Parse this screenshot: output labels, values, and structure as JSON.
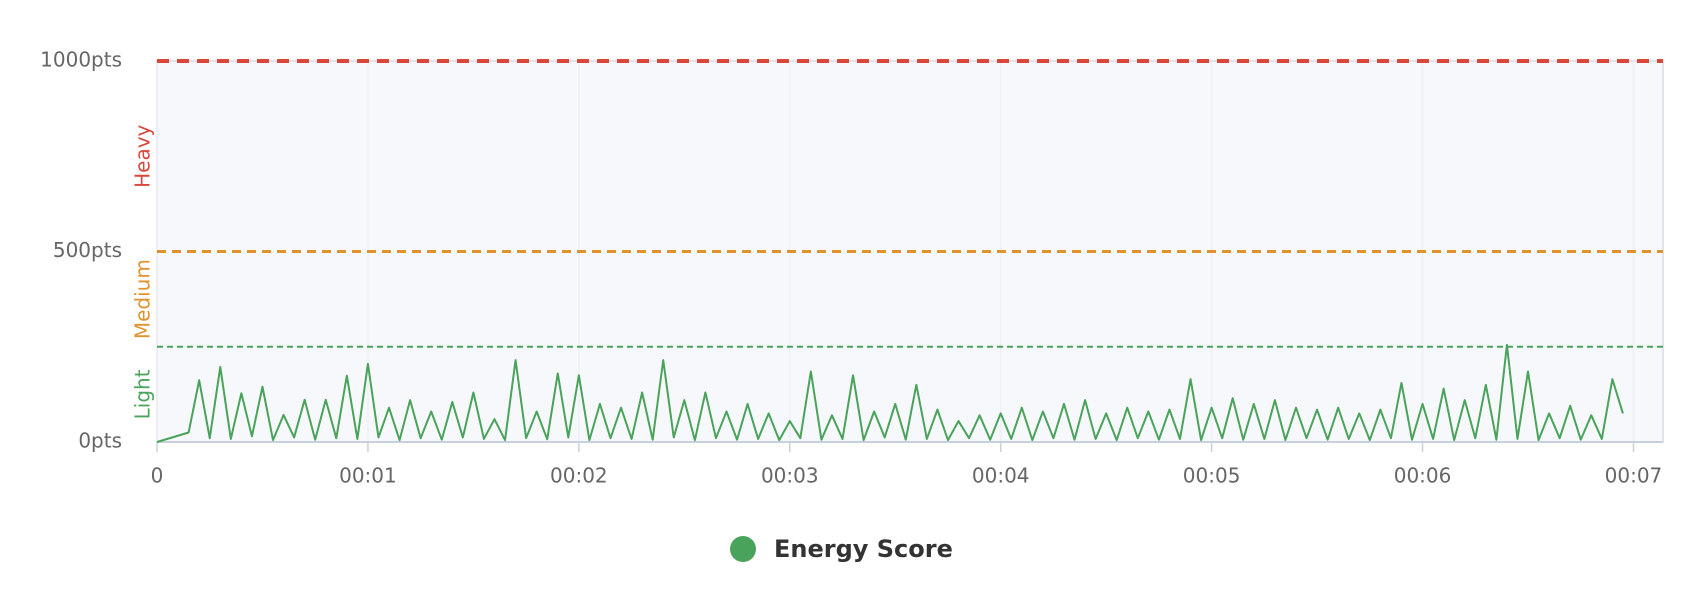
{
  "chart_data": {
    "type": "line",
    "x": [
      0,
      0.15,
      0.2,
      0.25,
      0.3,
      0.35,
      0.4,
      0.45,
      0.5,
      0.55,
      0.6,
      0.65,
      0.7,
      0.75,
      0.8,
      0.85,
      0.9,
      0.95,
      1,
      1.05,
      1.1,
      1.15,
      1.2,
      1.25,
      1.3,
      1.35,
      1.4,
      1.45,
      1.5,
      1.55,
      1.6,
      1.65,
      1.7,
      1.75,
      1.8,
      1.85,
      1.9,
      1.95,
      2,
      2.05,
      2.1,
      2.15,
      2.2,
      2.25,
      2.3,
      2.35,
      2.4,
      2.45,
      2.5,
      2.55,
      2.6,
      2.65,
      2.7,
      2.75,
      2.8,
      2.85,
      2.9,
      2.95,
      3,
      3.05,
      3.1,
      3.15,
      3.2,
      3.25,
      3.3,
      3.35,
      3.4,
      3.45,
      3.5,
      3.55,
      3.6,
      3.65,
      3.7,
      3.75,
      3.8,
      3.85,
      3.9,
      3.95,
      4,
      4.05,
      4.1,
      4.15,
      4.2,
      4.25,
      4.3,
      4.35,
      4.4,
      4.45,
      4.5,
      4.55,
      4.6,
      4.65,
      4.7,
      4.75,
      4.8,
      4.85,
      4.9,
      4.95,
      5,
      5.05,
      5.1,
      5.15,
      5.2,
      5.25,
      5.3,
      5.35,
      5.4,
      5.45,
      5.5,
      5.55,
      5.6,
      5.65,
      5.7,
      5.75,
      5.8,
      5.85,
      5.9,
      5.95,
      6,
      6.05,
      6.1,
      6.15,
      6.2,
      6.25,
      6.3,
      6.35,
      6.4,
      6.45,
      6.5,
      6.55,
      6.6,
      6.65,
      6.7,
      6.75,
      6.8,
      6.85,
      6.9,
      6.95
    ],
    "series": [
      {
        "name": "Energy Score",
        "color": "#4aa35a",
        "values": [
          0,
          25,
          162,
          10,
          197,
          8,
          128,
          15,
          145,
          5,
          71,
          12,
          111,
          6,
          111,
          10,
          174,
          8,
          205,
          12,
          90,
          5,
          110,
          10,
          80,
          6,
          105,
          12,
          130,
          8,
          60,
          5,
          215,
          10,
          80,
          7,
          180,
          12,
          175,
          5,
          100,
          10,
          90,
          8,
          130,
          6,
          215,
          12,
          110,
          5,
          130,
          10,
          80,
          6,
          100,
          8,
          75,
          5,
          55,
          10,
          185,
          6,
          70,
          8,
          175,
          5,
          80,
          12,
          100,
          6,
          150,
          8,
          85,
          5,
          55,
          10,
          70,
          6,
          75,
          8,
          90,
          5,
          80,
          10,
          100,
          6,
          110,
          8,
          75,
          5,
          90,
          10,
          80,
          6,
          85,
          8,
          165,
          5,
          90,
          10,
          115,
          6,
          100,
          8,
          110,
          5,
          90,
          10,
          85,
          6,
          90,
          8,
          75,
          5,
          85,
          10,
          155,
          6,
          100,
          8,
          140,
          5,
          110,
          10,
          150,
          6,
          255,
          8,
          185,
          5,
          75,
          10,
          95,
          6,
          70,
          8,
          165,
          75
        ]
      }
    ],
    "thresholds": [
      {
        "label": "Light",
        "value": 250,
        "color": "#4aa35a"
      },
      {
        "label": "Medium",
        "value": 500,
        "color": "#e0922f"
      },
      {
        "label": "Heavy",
        "value": 1000,
        "color": "#d9473b"
      }
    ],
    "xlim": [
      0,
      7.14
    ],
    "xticks": [
      0,
      {
        "value": 1,
        "label": "00:01"
      },
      {
        "value": 2,
        "label": "00:02"
      },
      {
        "value": 3,
        "label": "00:03"
      },
      {
        "value": 4,
        "label": "00:04"
      },
      {
        "value": 5,
        "label": "00:05"
      },
      {
        "value": 6,
        "label": "00:06"
      },
      {
        "value": 7,
        "label": "00:07"
      }
    ],
    "ylim": [
      0,
      1000
    ],
    "yticks": [
      {
        "value": 0,
        "label": "0pts"
      },
      {
        "value": 500,
        "label": "500pts"
      },
      {
        "value": 1000,
        "label": "1000pts"
      }
    ],
    "grid": true
  }
}
